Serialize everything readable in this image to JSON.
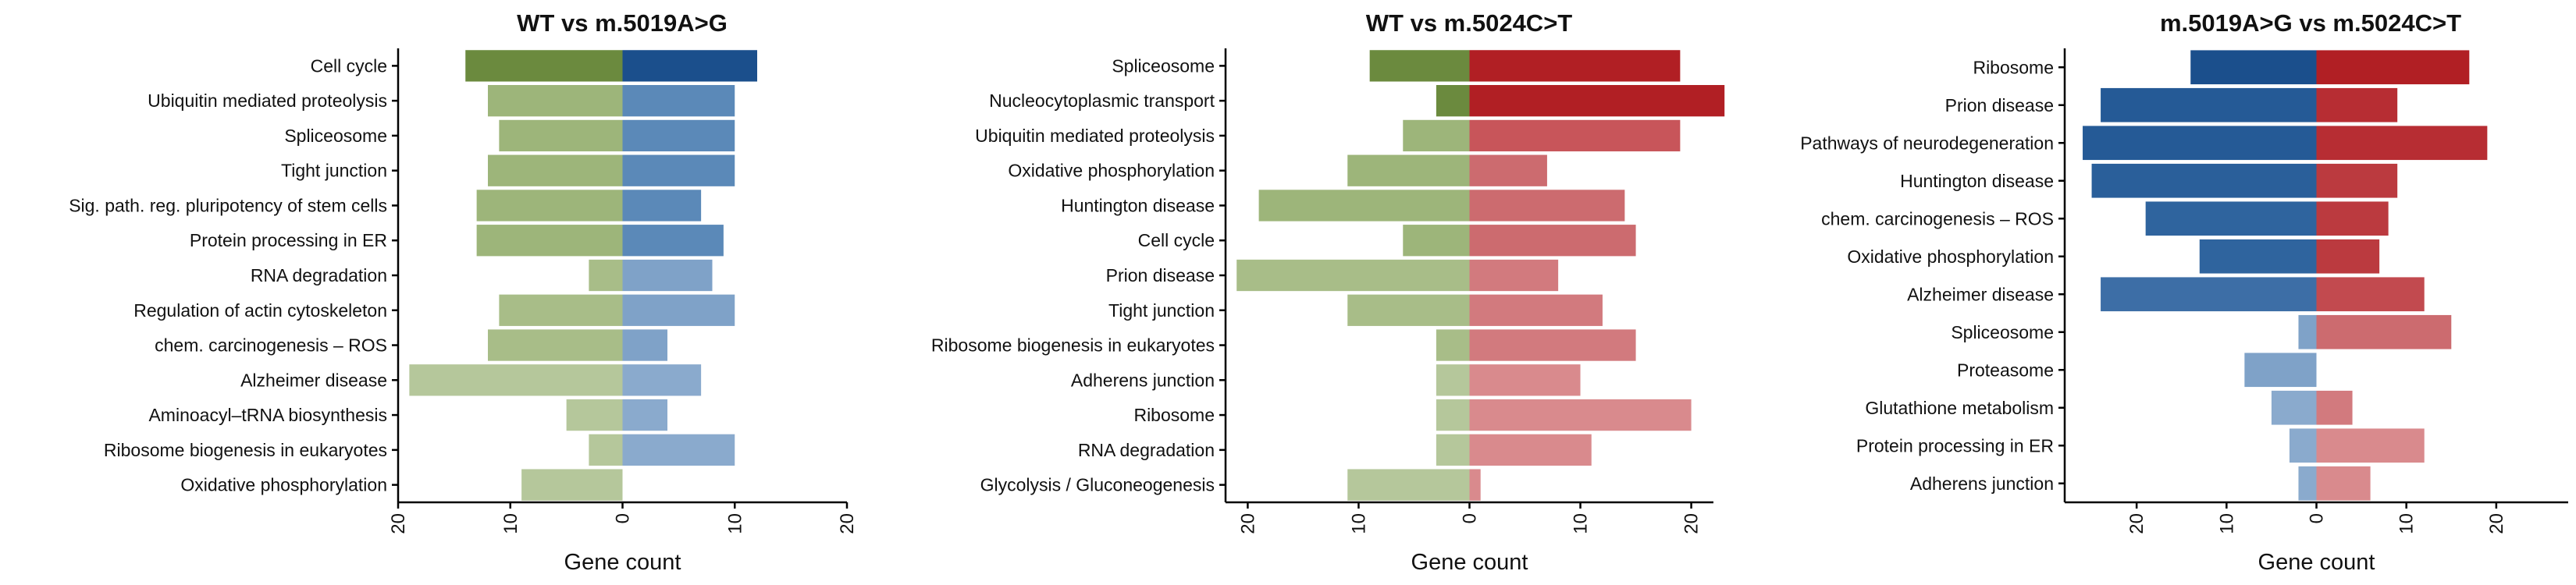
{
  "chart_data": [
    {
      "type": "bar",
      "title": "WT vs m.5019A>G",
      "xlabel": "Gene count",
      "xlim": [
        -20,
        20
      ],
      "xticks": [
        -20,
        -10,
        0,
        10,
        20
      ],
      "xtick_labels": [
        "20",
        "10",
        "0",
        "10",
        "20"
      ],
      "categories": [
        "Cell cycle",
        "Ubiquitin mediated proteolysis",
        "Spliceosome",
        "Tight junction",
        "Sig. path. reg. pluripotency of stem cells",
        "Protein processing in ER",
        "RNA degradation",
        "Regulation of actin cytoskeleton",
        "chem. carcinogenesis – ROS",
        "Alzheimer disease",
        "Aminoacyl–tRNA biosynthesis",
        "Ribosome biogenesis in eukaryotes",
        "Oxidative phosphorylation"
      ],
      "series": [
        {
          "values": [
            -14,
            -12,
            -11,
            -12,
            -13,
            -13,
            -3,
            -11,
            -12,
            -19,
            -5,
            -3,
            -9
          ],
          "colors": [
            "#6b8a3e",
            "#9db57a",
            "#9db57a",
            "#9db57a",
            "#9db57a",
            "#9db57a",
            "#a8bd88",
            "#a8bd88",
            "#a8bd88",
            "#b5c79b",
            "#b5c79b",
            "#b5c79b",
            "#b5c79b"
          ]
        },
        {
          "values": [
            12,
            10,
            10,
            10,
            7,
            9,
            8,
            10,
            4,
            7,
            4,
            10,
            0
          ],
          "colors": [
            "#1b4f8c",
            "#5b89b8",
            "#5b89b8",
            "#5b89b8",
            "#5b89b8",
            "#5b89b8",
            "#7fa2c8",
            "#7fa2c8",
            "#7fa2c8",
            "#8aaacd",
            "#8aaacd",
            "#8aaacd",
            "#8aaacd"
          ]
        }
      ]
    },
    {
      "type": "bar",
      "title": "WT vs m.5024C>T",
      "xlabel": "Gene count",
      "xlim": [
        -22,
        22
      ],
      "xticks": [
        -20,
        -10,
        0,
        10,
        20
      ],
      "xtick_labels": [
        "20",
        "10",
        "0",
        "10",
        "20"
      ],
      "categories": [
        "Spliceosome",
        "Nucleocytoplasmic transport",
        "Ubiquitin mediated proteolysis",
        "Oxidative phosphorylation",
        "Huntington disease",
        "Cell cycle",
        "Prion disease",
        "Tight junction",
        "Ribosome biogenesis in eukaryotes",
        "Adherens junction",
        "Ribosome",
        "RNA degradation",
        "Glycolysis / Gluconeogenesis"
      ],
      "series": [
        {
          "values": [
            -9,
            -3,
            -6,
            -11,
            -19,
            -6,
            -21,
            -11,
            -3,
            -3,
            -3,
            -3,
            -11
          ],
          "colors": [
            "#6b8a3e",
            "#6b8a3e",
            "#9db57a",
            "#9db57a",
            "#9db57a",
            "#9db57a",
            "#a8bd88",
            "#a8bd88",
            "#a8bd88",
            "#b5c79b",
            "#b5c79b",
            "#b5c79b",
            "#b5c79b"
          ]
        },
        {
          "values": [
            19,
            23,
            19,
            7,
            14,
            15,
            8,
            12,
            15,
            10,
            20,
            11,
            1
          ],
          "colors": [
            "#b11f24",
            "#b11f24",
            "#c8555a",
            "#cc6b6f",
            "#cc6b6f",
            "#cc6b6f",
            "#d27a7e",
            "#d27a7e",
            "#d27a7e",
            "#d98a8d",
            "#d98a8d",
            "#d98a8d",
            "#d98a8d"
          ]
        }
      ]
    },
    {
      "type": "bar",
      "title": "m.5019A>G vs m.5024C>T",
      "xlabel": "Gene count",
      "xlim": [
        -28,
        28
      ],
      "xticks": [
        -20,
        -10,
        0,
        10,
        20
      ],
      "xtick_labels": [
        "20",
        "10",
        "0",
        "10",
        "20"
      ],
      "categories": [
        "Ribosome",
        "Prion disease",
        "Pathways of neurodegeneration",
        "Huntington disease",
        "chem. carcinogenesis – ROS",
        "Oxidative phosphorylation",
        "Alzheimer disease",
        "Spliceosome",
        "Proteasome",
        "Glutathione metabolism",
        "Protein processing in ER",
        "Adherens junction"
      ],
      "series": [
        {
          "values": [
            -14,
            -24,
            -26,
            -25,
            -19,
            -13,
            -24,
            -2,
            -8,
            -5,
            -3,
            -2
          ],
          "colors": [
            "#1b4f8c",
            "#255a96",
            "#255a96",
            "#2a5f9a",
            "#2f649e",
            "#2f649e",
            "#3d6ea6",
            "#7fa2c8",
            "#7fa2c8",
            "#8aaacd",
            "#8aaacd",
            "#8aaacd"
          ]
        },
        {
          "values": [
            17,
            9,
            19,
            9,
            8,
            7,
            12,
            15,
            0,
            4,
            12,
            6
          ],
          "colors": [
            "#b11f24",
            "#b72d33",
            "#b72d33",
            "#bb3a3f",
            "#bb3a3f",
            "#bb3a3f",
            "#c24a4f",
            "#cc6b6f",
            "#cc6b6f",
            "#d27a7e",
            "#d98a8d",
            "#d98a8d"
          ]
        }
      ]
    }
  ]
}
